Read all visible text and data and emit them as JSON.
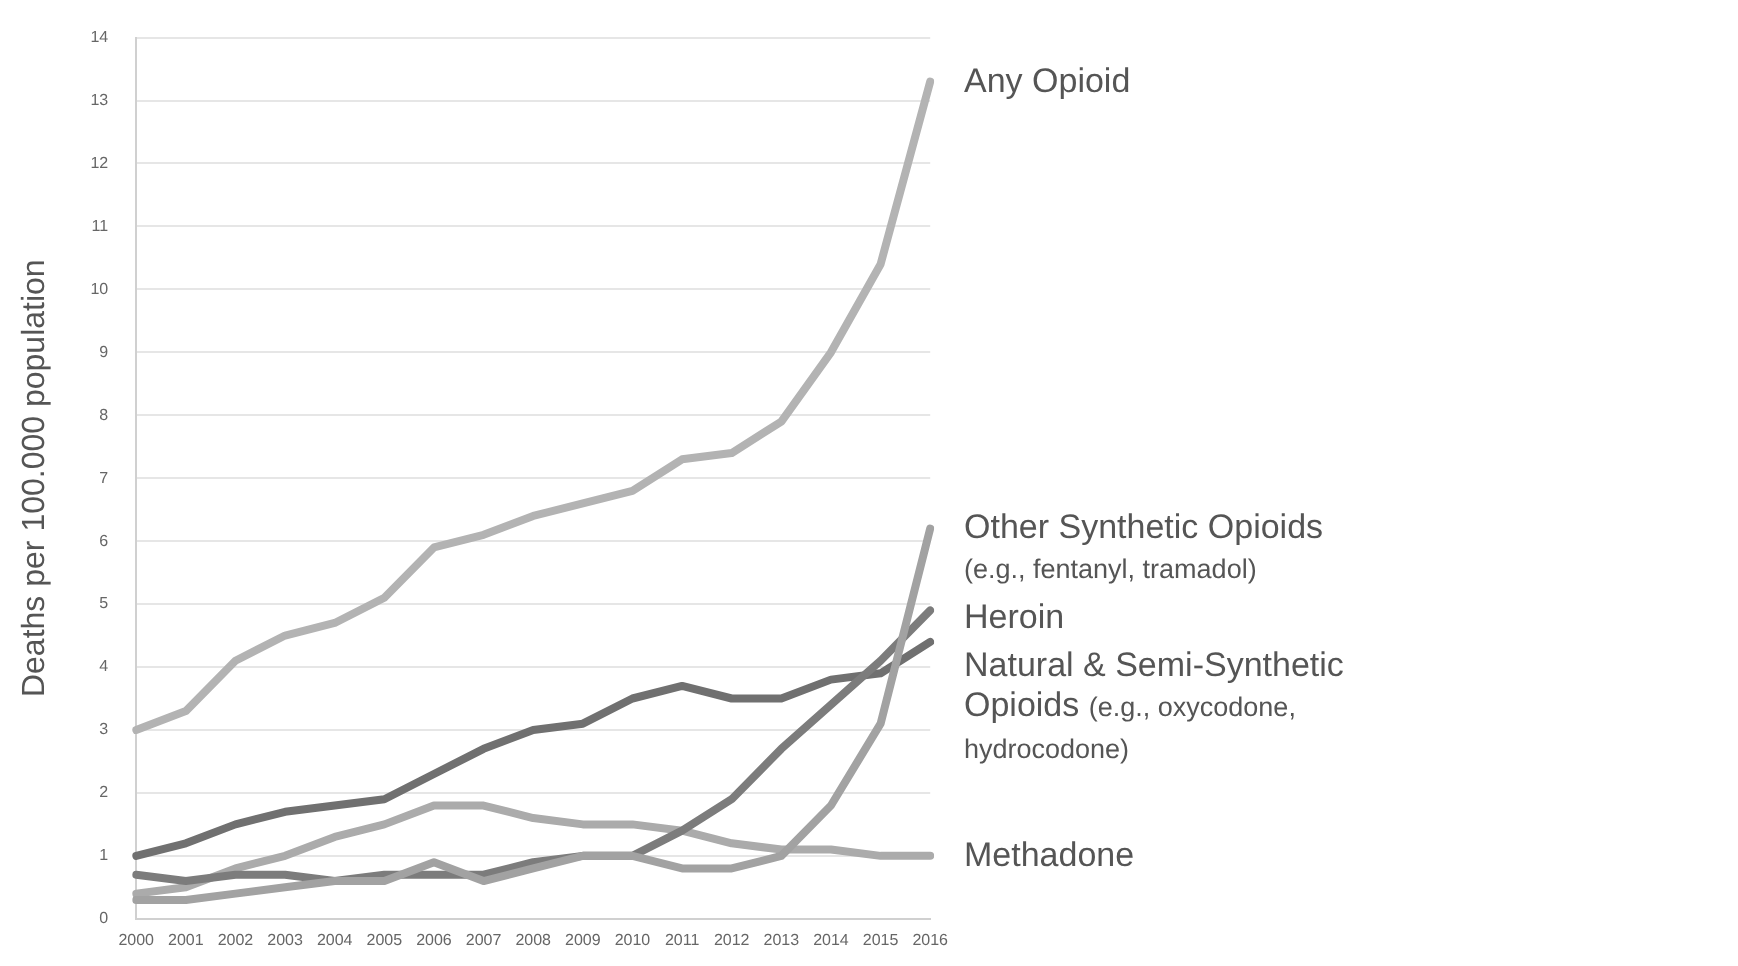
{
  "chart_data": {
    "type": "line",
    "ylabel": "Deaths per 100.000 population",
    "categories": [
      "2000",
      "2001",
      "2002",
      "2003",
      "2004",
      "2005",
      "2006",
      "2007",
      "2008",
      "2009",
      "2010",
      "2011",
      "2012",
      "2013",
      "2014",
      "2015",
      "2016"
    ],
    "series": [
      {
        "name": "Any Opioid",
        "color": "#b3b3b3",
        "values": [
          3.0,
          3.3,
          4.1,
          4.5,
          4.7,
          5.1,
          5.9,
          6.1,
          6.4,
          6.6,
          6.8,
          7.3,
          7.4,
          7.9,
          9.0,
          10.4,
          13.3
        ]
      },
      {
        "name": "Other Synthetic Opioids (e.g., fentanyl, tramadol)",
        "color": "#a2a2a2",
        "values": [
          0.3,
          0.3,
          0.4,
          0.5,
          0.6,
          0.6,
          0.9,
          0.6,
          0.8,
          1.0,
          1.0,
          0.8,
          0.8,
          1.0,
          1.8,
          3.1,
          6.2
        ]
      },
      {
        "name": "Heroin",
        "color": "#7c7c7c",
        "values": [
          0.7,
          0.6,
          0.7,
          0.7,
          0.6,
          0.7,
          0.7,
          0.7,
          0.9,
          1.0,
          1.0,
          1.4,
          1.9,
          2.7,
          3.4,
          4.1,
          4.9
        ]
      },
      {
        "name": "Natural & Semi-Synthetic Opioids (e.g., oxycodone, hydrocodone)",
        "color": "#707070",
        "values": [
          1.0,
          1.2,
          1.5,
          1.7,
          1.8,
          1.9,
          2.3,
          2.7,
          3.0,
          3.1,
          3.5,
          3.7,
          3.5,
          3.5,
          3.8,
          3.9,
          4.4
        ]
      },
      {
        "name": "Methadone",
        "color": "#ababab",
        "values": [
          0.4,
          0.5,
          0.8,
          1.0,
          1.3,
          1.5,
          1.8,
          1.8,
          1.6,
          1.5,
          1.5,
          1.4,
          1.2,
          1.1,
          1.1,
          1.0,
          1.0
        ]
      }
    ],
    "ylim": [
      0,
      14
    ],
    "yticks": [
      0,
      1,
      2,
      3,
      4,
      5,
      6,
      7,
      8,
      9,
      10,
      11,
      12,
      13,
      14
    ],
    "grid": "y",
    "legend": false,
    "marker": "none",
    "line_style": "solid"
  }
}
